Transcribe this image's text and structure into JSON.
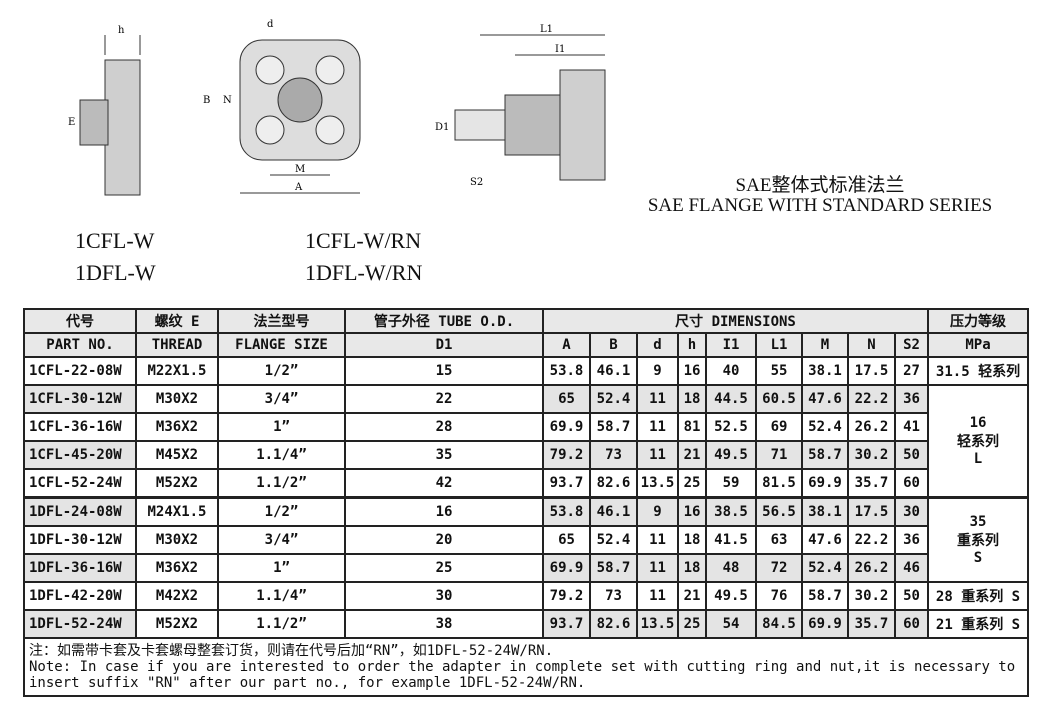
{
  "title_cn": "SAE整体式标准法兰",
  "title_en": "SAE FLANGE WITH STANDARD SERIES",
  "models": [
    "1CFL-W",
    "1DFL-W",
    "1CFL-W/RN",
    "1DFL-W/RN"
  ],
  "drawing_labels": {
    "h": "h",
    "d": "d",
    "B": "B",
    "N": "N",
    "M": "M",
    "A": "A",
    "L1": "L1",
    "I1": "I1",
    "D1": "D1",
    "S2": "S2",
    "E": "E"
  },
  "header": {
    "part_cn": "代号",
    "part_en": "PART NO.",
    "thread_cn": "螺纹 E",
    "thread_en": "THREAD",
    "flange_cn": "法兰型号",
    "flange_en": "FLANGE SIZE",
    "tube": "管子外径 TUBE O.D.",
    "d1": "D1",
    "dims": "尺寸  DIMENSIONS",
    "dim_cols": [
      "A",
      "B",
      "d",
      "h",
      "I1",
      "L1",
      "M",
      "N",
      "S2"
    ],
    "mpa_cn": "压力等级",
    "mpa": "MPa"
  },
  "rows": [
    [
      "1CFL-22-08W",
      "M22X1.5",
      "1/2”",
      "15",
      "53.8",
      "46.1",
      "9",
      "16",
      "40",
      "55",
      "38.1",
      "17.5",
      "27"
    ],
    [
      "1CFL-30-12W",
      "M30X2",
      "3/4”",
      "22",
      "65",
      "52.4",
      "11",
      "18",
      "44.5",
      "60.5",
      "47.6",
      "22.2",
      "36"
    ],
    [
      "1CFL-36-16W",
      "M36X2",
      "1”",
      "28",
      "69.9",
      "58.7",
      "11",
      "81",
      "52.5",
      "69",
      "52.4",
      "26.2",
      "41"
    ],
    [
      "1CFL-45-20W",
      "M45X2",
      "1.1/4”",
      "35",
      "79.2",
      "73",
      "11",
      "21",
      "49.5",
      "71",
      "58.7",
      "30.2",
      "50"
    ],
    [
      "1CFL-52-24W",
      "M52X2",
      "1.1/2”",
      "42",
      "93.7",
      "82.6",
      "13.5",
      "25",
      "59",
      "81.5",
      "69.9",
      "35.7",
      "60"
    ],
    [
      "1DFL-24-08W",
      "M24X1.5",
      "1/2”",
      "16",
      "53.8",
      "46.1",
      "9",
      "16",
      "38.5",
      "56.5",
      "38.1",
      "17.5",
      "30"
    ],
    [
      "1DFL-30-12W",
      "M30X2",
      "3/4”",
      "20",
      "65",
      "52.4",
      "11",
      "18",
      "41.5",
      "63",
      "47.6",
      "22.2",
      "36"
    ],
    [
      "1DFL-36-16W",
      "M36X2",
      "1”",
      "25",
      "69.9",
      "58.7",
      "11",
      "18",
      "48",
      "72",
      "52.4",
      "26.2",
      "46"
    ],
    [
      "1DFL-42-20W",
      "M42X2",
      "1.1/4”",
      "30",
      "79.2",
      "73",
      "11",
      "21",
      "49.5",
      "76",
      "58.7",
      "30.2",
      "50"
    ],
    [
      "1DFL-52-24W",
      "M52X2",
      "1.1/2”",
      "38",
      "93.7",
      "82.6",
      "13.5",
      "25",
      "54",
      "84.5",
      "69.9",
      "35.7",
      "60"
    ]
  ],
  "pressure": {
    "r0": "31.5 轻系列",
    "g1a": "16",
    "g1b": "轻系列",
    "g1c": "L",
    "g2a": "35",
    "g2b": "重系列",
    "g2c": "S",
    "r8": "28 重系列 S",
    "r9": "21 重系列 S"
  },
  "note": {
    "cn": "注：如需带卡套及卡套螺母整套订货，则请在代号后加“RN”，如1DFL-52-24W/RN.",
    "en": "Note:  In case if you are interested to order the adapter in complete set with cutting ring and nut,it is necessary to insert suffix \"RN\" after our part no.,  for example 1DFL-52-24W/RN."
  }
}
